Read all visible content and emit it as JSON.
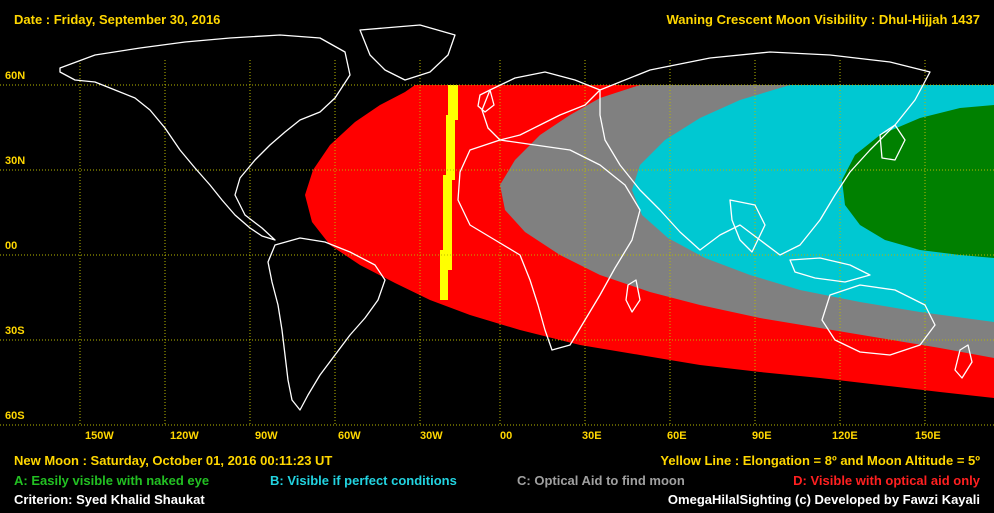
{
  "header": {
    "date": "Date : Friday, September 30, 2016",
    "title": "Waning Crescent Moon Visibility : Dhul-Hijjah 1437"
  },
  "map": {
    "lat_labels": [
      "60N",
      "30N",
      "00",
      "30S",
      "60S"
    ],
    "lon_labels": [
      "150W",
      "120W",
      "90W",
      "60W",
      "30W",
      "00",
      "30E",
      "60E",
      "90E",
      "120E",
      "150E"
    ],
    "colors": {
      "zone_a": "#008000",
      "zone_b": "#00c8d2",
      "zone_c": "#808080",
      "zone_d": "#ff0000",
      "yellow_line": "#ffff00",
      "grid": "#b8b800",
      "land": "#ffffff"
    }
  },
  "footer": {
    "new_moon": "New Moon : Saturday, October 01, 2016  00:11:23  UT",
    "yellow_line": "Yellow Line : Elongation = 8º and Moon Altitude = 5º",
    "legend": {
      "a": "A: Easily visible with naked eye",
      "b": "B: Visible if perfect conditions",
      "c": "C: Optical Aid to find moon",
      "d": "D: Visible with optical aid only"
    },
    "criterion": "Criterion: Syed Khalid Shaukat",
    "credit": "OmegaHilalSighting  (c)  Developed by Fawzi Kayali"
  }
}
